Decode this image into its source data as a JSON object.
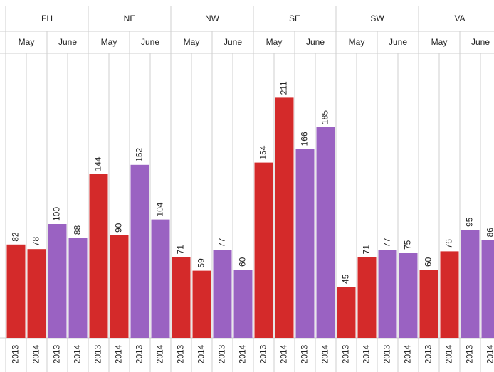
{
  "chart_data": {
    "type": "bar",
    "ylim": [
      0,
      250
    ],
    "groups": [
      {
        "name": "FH",
        "subgroups": [
          {
            "name": "May",
            "color": "#d42a2a",
            "categories": [
              "2013",
              "2014"
            ],
            "values": [
              82,
              78
            ]
          },
          {
            "name": "June",
            "color": "#9a62c2",
            "categories": [
              "2013",
              "2014"
            ],
            "values": [
              100,
              88
            ]
          }
        ]
      },
      {
        "name": "NE",
        "subgroups": [
          {
            "name": "May",
            "color": "#d42a2a",
            "categories": [
              "2013",
              "2014"
            ],
            "values": [
              144,
              90
            ]
          },
          {
            "name": "June",
            "color": "#9a62c2",
            "categories": [
              "2013",
              "2014"
            ],
            "values": [
              152,
              104
            ]
          }
        ]
      },
      {
        "name": "NW",
        "subgroups": [
          {
            "name": "May",
            "color": "#d42a2a",
            "categories": [
              "2013",
              "2014"
            ],
            "values": [
              71,
              59
            ]
          },
          {
            "name": "June",
            "color": "#9a62c2",
            "categories": [
              "2013",
              "2014"
            ],
            "values": [
              77,
              60
            ]
          }
        ]
      },
      {
        "name": "SE",
        "subgroups": [
          {
            "name": "May",
            "color": "#d42a2a",
            "categories": [
              "2013",
              "2014"
            ],
            "values": [
              154,
              211
            ]
          },
          {
            "name": "June",
            "color": "#9a62c2",
            "categories": [
              "2013",
              "2014"
            ],
            "values": [
              166,
              185
            ]
          }
        ]
      },
      {
        "name": "SW",
        "subgroups": [
          {
            "name": "May",
            "color": "#d42a2a",
            "categories": [
              "2013",
              "2014"
            ],
            "values": [
              45,
              71
            ]
          },
          {
            "name": "June",
            "color": "#9a62c2",
            "categories": [
              "2013",
              "2014"
            ],
            "values": [
              77,
              75
            ]
          }
        ]
      },
      {
        "name": "VA",
        "subgroups": [
          {
            "name": "May",
            "color": "#d42a2a",
            "categories": [
              "2013",
              "2014"
            ],
            "values": [
              60,
              76
            ]
          },
          {
            "name": "June",
            "color": "#9a62c2",
            "categories": [
              "2013",
              "2014"
            ],
            "values": [
              95,
              86
            ]
          }
        ]
      }
    ]
  }
}
